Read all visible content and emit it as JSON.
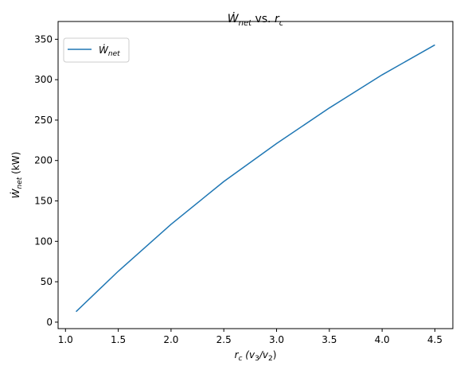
{
  "chart_data": {
    "type": "line",
    "title": [
      "Ẇ",
      "net",
      " vs. ",
      "r",
      "c"
    ],
    "x_label": [
      "r",
      "c",
      " (v",
      "3",
      "/v",
      "2",
      ")"
    ],
    "y_label": [
      "Ẇ",
      "net",
      " (kW)"
    ],
    "x": [
      1.1,
      1.5,
      2.0,
      2.5,
      3.0,
      3.5,
      4.0,
      4.5
    ],
    "series": [
      {
        "name": [
          "Ẇ",
          "net"
        ],
        "color": "#1f77b4",
        "values": [
          13,
          63,
          121,
          174,
          221,
          265,
          306,
          343
        ]
      }
    ],
    "xlim": [
      0.93,
      4.67
    ],
    "ylim": [
      -8,
      372
    ],
    "xticks": [
      {
        "value": 1.0,
        "label": "1.0"
      },
      {
        "value": 1.5,
        "label": "1.5"
      },
      {
        "value": 2.0,
        "label": "2.0"
      },
      {
        "value": 2.5,
        "label": "2.5"
      },
      {
        "value": 3.0,
        "label": "3.0"
      },
      {
        "value": 3.5,
        "label": "3.5"
      },
      {
        "value": 4.0,
        "label": "4.0"
      },
      {
        "value": 4.5,
        "label": "4.5"
      }
    ],
    "yticks": [
      0,
      50,
      100,
      150,
      200,
      250,
      300,
      350
    ],
    "legend": "upper left"
  }
}
